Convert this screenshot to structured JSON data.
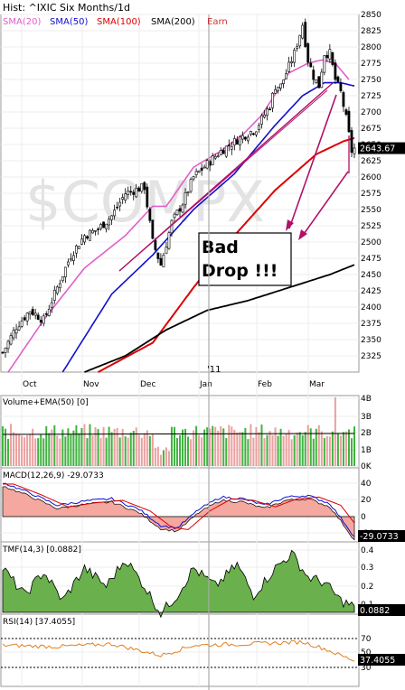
{
  "chart_data": {
    "type": "candlestick",
    "header": {
      "title": "Hist: ^IXIC Six Months/1d",
      "legend": [
        {
          "label": "SMA(20)",
          "color": "#e060c8"
        },
        {
          "label": "SMA(50)",
          "color": "#1010d0"
        },
        {
          "label": "SMA(100)",
          "color": "#dd0000"
        },
        {
          "label": "SMA(200)",
          "color": "#000000"
        },
        {
          "label": "Earn",
          "color": "#cc3333"
        }
      ]
    },
    "watermark": "$COMPX",
    "annotation": "Bad\nDrop !!!",
    "colors": {
      "up": "#009900",
      "down": "#cc0000",
      "sma20": "#e060c8",
      "sma50": "#1010d0",
      "sma100": "#dd0000",
      "sma200": "#000000",
      "arrow": "#b0106a",
      "macd_fill": "#f4a8a0",
      "macd_pos_fill": "#6ab04c",
      "tmf_fill": "#6ab04c"
    },
    "main_panel": {
      "ylim": [
        2300,
        2850
      ],
      "y_ticks": [
        "2850",
        "2825",
        "2800",
        "2775",
        "2750",
        "2725",
        "2700",
        "2675",
        "2650",
        "2625",
        "2600",
        "2575",
        "2550",
        "2525",
        "2500",
        "2475",
        "2450",
        "2425",
        "2400",
        "2375",
        "2350",
        "2325"
      ],
      "x_labels": [
        "Oct",
        "Nov",
        "Dec",
        "Jan",
        "Feb",
        "Mar"
      ],
      "year_marker": "'11",
      "last_value": "2643.67",
      "n_bars": 130,
      "close_anchors": [
        [
          0,
          2330
        ],
        [
          5,
          2370
        ],
        [
          10,
          2395
        ],
        [
          15,
          2380
        ],
        [
          20,
          2430
        ],
        [
          25,
          2480
        ],
        [
          30,
          2510
        ],
        [
          35,
          2520
        ],
        [
          40,
          2540
        ],
        [
          45,
          2575
        ],
        [
          52,
          2585
        ],
        [
          55,
          2500
        ],
        [
          58,
          2465
        ],
        [
          62,
          2530
        ],
        [
          66,
          2560
        ],
        [
          70,
          2600
        ],
        [
          75,
          2620
        ],
        [
          80,
          2640
        ],
        [
          87,
          2660
        ],
        [
          93,
          2675
        ],
        [
          98,
          2710
        ],
        [
          100,
          2740
        ],
        [
          102,
          2740
        ],
        [
          104,
          2760
        ],
        [
          107,
          2790
        ],
        [
          110,
          2835
        ],
        [
          112,
          2780
        ],
        [
          114,
          2755
        ],
        [
          116,
          2740
        ],
        [
          118,
          2790
        ],
        [
          120,
          2790
        ],
        [
          122,
          2750
        ],
        [
          124,
          2730
        ],
        [
          126,
          2690
        ],
        [
          128,
          2640
        ],
        [
          129,
          2643.67
        ]
      ],
      "sma20": [
        [
          2,
          2300
        ],
        [
          15,
          2380
        ],
        [
          30,
          2460
        ],
        [
          45,
          2510
        ],
        [
          55,
          2555
        ],
        [
          60,
          2555
        ],
        [
          70,
          2615
        ],
        [
          80,
          2640
        ],
        [
          88,
          2665
        ],
        [
          95,
          2695
        ],
        [
          105,
          2760
        ],
        [
          112,
          2775
        ],
        [
          117,
          2780
        ],
        [
          122,
          2775
        ],
        [
          127,
          2750
        ]
      ],
      "sma50": [
        [
          22,
          2300
        ],
        [
          40,
          2420
        ],
        [
          55,
          2480
        ],
        [
          70,
          2550
        ],
        [
          85,
          2605
        ],
        [
          100,
          2680
        ],
        [
          110,
          2725
        ],
        [
          118,
          2745
        ],
        [
          124,
          2745
        ],
        [
          129,
          2740
        ]
      ],
      "sma100": [
        [
          35,
          2300
        ],
        [
          55,
          2345
        ],
        [
          70,
          2430
        ],
        [
          85,
          2510
        ],
        [
          100,
          2580
        ],
        [
          115,
          2635
        ],
        [
          125,
          2655
        ],
        [
          129,
          2660
        ]
      ],
      "sma200": [
        [
          30,
          2300
        ],
        [
          45,
          2325
        ],
        [
          60,
          2365
        ],
        [
          75,
          2395
        ],
        [
          90,
          2410
        ],
        [
          105,
          2430
        ],
        [
          120,
          2450
        ],
        [
          129,
          2465
        ]
      ]
    },
    "volume_panel": {
      "label": "Volume+EMA(50)",
      "value": "[0]",
      "y_ticks": [
        "4B",
        "3B",
        "2B",
        "1B",
        "0K"
      ]
    },
    "macd_panel": {
      "label": "MACD(12,26,9)",
      "value": "-29.0733",
      "last_value": "-29.0733",
      "y_ticks": [
        "40",
        "20",
        "0",
        "-20"
      ]
    },
    "tmf_panel": {
      "label": "TMF(14,3)",
      "value": "[0.0882]",
      "last_value": "0.0882",
      "y_ticks": [
        "0.4",
        "0.3",
        "0.2",
        "0.1"
      ]
    },
    "rsi_panel": {
      "label": "RSI(14)",
      "value": "[37.4055]",
      "last_value": "37.4055",
      "y_ticks": [
        "70",
        "50",
        "30"
      ]
    }
  }
}
